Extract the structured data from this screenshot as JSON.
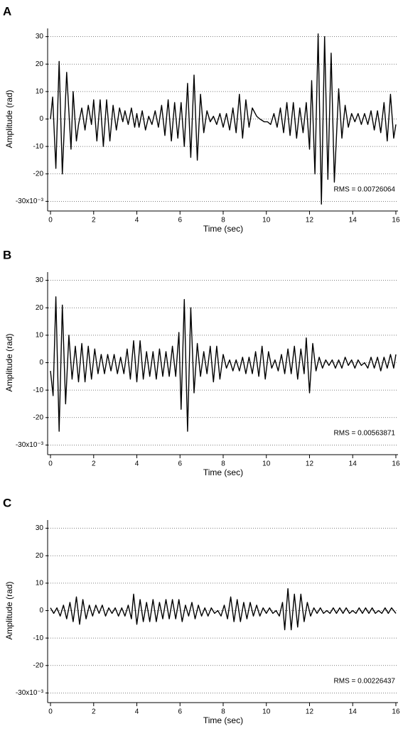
{
  "chart_data": [
    {
      "type": "line",
      "panel": "A",
      "xlabel": "Time (sec)",
      "ylabel": "Amplitude (rad)",
      "annotation": "RMS = 0.00726064",
      "color": "#000000",
      "grid": true,
      "xlim": [
        -0.1,
        16.1
      ],
      "ylim": [
        -33,
        33
      ],
      "xticks": [
        0,
        2,
        4,
        6,
        8,
        10,
        12,
        14,
        16
      ],
      "yticks": [
        30,
        20,
        10,
        0,
        -10,
        -20,
        {
          "value": -30,
          "label": "-30x10⁻³"
        }
      ],
      "x": [
        0,
        0.1,
        0.25,
        0.4,
        0.55,
        0.75,
        0.95,
        1.05,
        1.2,
        1.3,
        1.45,
        1.6,
        1.75,
        1.9,
        2.0,
        2.15,
        2.3,
        2.45,
        2.6,
        2.75,
        2.9,
        3.05,
        3.2,
        3.35,
        3.45,
        3.6,
        3.75,
        3.9,
        4.0,
        4.1,
        4.25,
        4.4,
        4.55,
        4.7,
        4.85,
        5.0,
        5.15,
        5.3,
        5.45,
        5.6,
        5.75,
        5.9,
        6.05,
        6.2,
        6.35,
        6.5,
        6.65,
        6.8,
        6.95,
        7.1,
        7.25,
        7.4,
        7.55,
        7.7,
        7.85,
        8.0,
        8.15,
        8.3,
        8.45,
        8.6,
        8.75,
        8.9,
        9.05,
        9.2,
        9.35,
        9.55,
        9.7,
        9.9,
        10.05,
        10.2,
        10.35,
        10.5,
        10.65,
        10.8,
        10.95,
        11.1,
        11.25,
        11.4,
        11.55,
        11.7,
        11.85,
        12.0,
        12.1,
        12.25,
        12.4,
        12.55,
        12.7,
        12.85,
        13.0,
        13.15,
        13.35,
        13.5,
        13.65,
        13.8,
        13.95,
        14.1,
        14.25,
        14.4,
        14.55,
        14.7,
        14.85,
        15.0,
        15.15,
        15.3,
        15.45,
        15.6,
        15.75,
        15.9,
        16.0
      ],
      "values": [
        0,
        8,
        -18,
        21,
        -20,
        17,
        -11,
        10,
        -8,
        -2,
        4,
        -4,
        5,
        -2,
        7,
        -8,
        7,
        -10,
        7,
        -8,
        5,
        -4,
        4,
        -1,
        3,
        -2,
        4,
        -3,
        2,
        -3,
        3,
        -4,
        1,
        -2,
        3,
        -3,
        5,
        -6,
        7,
        -8,
        6,
        -7,
        6,
        -10,
        13,
        -14,
        16,
        -15,
        9,
        -5,
        3,
        -1,
        1,
        -2,
        2,
        -3,
        2,
        -4,
        4,
        -5,
        9,
        -7,
        7,
        -3,
        4,
        1,
        0,
        -1,
        -1,
        -2,
        2,
        -3,
        4,
        -5,
        6,
        -6,
        6,
        -7,
        4,
        -5,
        6,
        -11,
        14,
        -20,
        31,
        -31,
        30,
        -22,
        24,
        -23,
        11,
        -7,
        5,
        -3,
        2,
        -1,
        2,
        -2,
        2,
        -2,
        3,
        -4,
        3,
        -5,
        6,
        -8,
        9,
        -7,
        -2
      ]
    },
    {
      "type": "line",
      "panel": "B",
      "xlabel": "Time (sec)",
      "ylabel": "Amplitude (rad)",
      "annotation": "RMS = 0.00563871",
      "color": "#000000",
      "grid": true,
      "xlim": [
        -0.1,
        16.1
      ],
      "ylim": [
        -33,
        33
      ],
      "xticks": [
        0,
        2,
        4,
        6,
        8,
        10,
        12,
        14,
        16
      ],
      "yticks": [
        30,
        20,
        10,
        0,
        -10,
        -20,
        {
          "value": -30,
          "label": "-30x10⁻³"
        }
      ],
      "x": [
        0,
        0.12,
        0.25,
        0.4,
        0.55,
        0.7,
        0.85,
        1.0,
        1.15,
        1.3,
        1.45,
        1.6,
        1.75,
        1.9,
        2.05,
        2.2,
        2.35,
        2.5,
        2.65,
        2.8,
        2.95,
        3.1,
        3.25,
        3.4,
        3.55,
        3.7,
        3.85,
        4.0,
        4.15,
        4.3,
        4.45,
        4.6,
        4.75,
        4.9,
        5.05,
        5.2,
        5.35,
        5.5,
        5.65,
        5.8,
        5.95,
        6.05,
        6.2,
        6.35,
        6.5,
        6.65,
        6.8,
        6.95,
        7.1,
        7.25,
        7.4,
        7.55,
        7.7,
        7.85,
        8.0,
        8.15,
        8.3,
        8.45,
        8.6,
        8.75,
        8.9,
        9.05,
        9.2,
        9.35,
        9.5,
        9.65,
        9.8,
        9.95,
        10.1,
        10.25,
        10.4,
        10.55,
        10.7,
        10.85,
        11.0,
        11.15,
        11.3,
        11.45,
        11.6,
        11.75,
        11.85,
        12.0,
        12.15,
        12.3,
        12.45,
        12.6,
        12.75,
        12.9,
        13.05,
        13.2,
        13.35,
        13.5,
        13.65,
        13.8,
        13.95,
        14.1,
        14.25,
        14.4,
        14.55,
        14.7,
        14.85,
        15.0,
        15.15,
        15.3,
        15.45,
        15.6,
        15.75,
        15.9,
        16.0
      ],
      "values": [
        -3,
        -12,
        24,
        -25,
        21,
        -15,
        10,
        -6,
        6,
        -7,
        7,
        -7,
        6,
        -6,
        5,
        -4,
        3,
        -4,
        3,
        -3,
        3,
        -4,
        2,
        -4,
        5,
        -6,
        8,
        -7,
        8,
        -6,
        4,
        -5,
        4,
        -6,
        5,
        -5,
        4,
        -5,
        6,
        -5,
        11,
        -17,
        23,
        -25,
        20,
        -11,
        7,
        -5,
        4,
        -4,
        6,
        -7,
        6,
        -6,
        3,
        -2,
        1,
        -3,
        1,
        -3,
        2,
        -4,
        2,
        -4,
        4,
        -5,
        6,
        -6,
        4,
        -2,
        1,
        -3,
        3,
        -4,
        5,
        -4,
        6,
        -6,
        5,
        -4,
        9,
        -11,
        7,
        -3,
        2,
        -2,
        1,
        -1,
        1,
        -2,
        1,
        -2,
        2,
        -1,
        1,
        -2,
        1,
        -1,
        0,
        -2,
        2,
        -2,
        2,
        -3,
        2,
        -2,
        3,
        -2,
        3
      ]
    },
    {
      "type": "line",
      "panel": "C",
      "xlabel": "Time (sec)",
      "ylabel": "Amplitude (rad)",
      "annotation": "RMS = 0.00226437",
      "color": "#000000",
      "grid": true,
      "xlim": [
        -0.1,
        16.1
      ],
      "ylim": [
        -33,
        33
      ],
      "xticks": [
        0,
        2,
        4,
        6,
        8,
        10,
        12,
        14,
        16
      ],
      "yticks": [
        30,
        20,
        10,
        0,
        -10,
        -20,
        {
          "value": -30,
          "label": "-30x10⁻³"
        }
      ],
      "x": [
        0,
        0.15,
        0.3,
        0.45,
        0.6,
        0.75,
        0.9,
        1.05,
        1.2,
        1.35,
        1.5,
        1.65,
        1.8,
        1.95,
        2.1,
        2.25,
        2.4,
        2.55,
        2.7,
        2.85,
        3.0,
        3.15,
        3.3,
        3.45,
        3.6,
        3.75,
        3.85,
        4.0,
        4.15,
        4.3,
        4.45,
        4.6,
        4.75,
        4.9,
        5.05,
        5.2,
        5.35,
        5.5,
        5.65,
        5.8,
        5.95,
        6.1,
        6.25,
        6.4,
        6.55,
        6.7,
        6.85,
        7.0,
        7.15,
        7.3,
        7.45,
        7.6,
        7.75,
        7.9,
        8.05,
        8.2,
        8.35,
        8.5,
        8.65,
        8.8,
        8.95,
        9.1,
        9.25,
        9.4,
        9.55,
        9.7,
        9.85,
        10.0,
        10.15,
        10.3,
        10.45,
        10.6,
        10.75,
        10.85,
        11.0,
        11.15,
        11.3,
        11.45,
        11.6,
        11.75,
        11.9,
        12.05,
        12.2,
        12.35,
        12.5,
        12.65,
        12.8,
        12.95,
        13.1,
        13.25,
        13.4,
        13.55,
        13.7,
        13.85,
        14.0,
        14.15,
        14.3,
        14.45,
        14.6,
        14.75,
        14.9,
        15.05,
        15.2,
        15.35,
        15.5,
        15.65,
        15.8,
        16.0
      ],
      "values": [
        1,
        -1,
        1,
        -2,
        2,
        -3,
        3,
        -4,
        5,
        -5,
        4,
        -3,
        2,
        -2,
        2,
        -1,
        2,
        -2,
        1,
        -1,
        1,
        -2,
        1,
        -2,
        2,
        -3,
        6,
        -5,
        4,
        -4,
        3,
        -4,
        4,
        -4,
        3,
        -3,
        4,
        -3,
        4,
        -3,
        4,
        -4,
        2,
        -2,
        3,
        -3,
        2,
        -2,
        1,
        -2,
        1,
        -1,
        0,
        -2,
        2,
        -3,
        5,
        -4,
        4,
        -4,
        3,
        -3,
        3,
        -2,
        2,
        -2,
        1,
        -1,
        1,
        -1,
        0,
        -2,
        3,
        -7,
        8,
        -7,
        6,
        -6,
        6,
        -4,
        3,
        -2,
        1,
        -1,
        1,
        -1,
        0,
        -1,
        1,
        -1,
        1,
        -1,
        1,
        -1,
        0,
        -1,
        1,
        -1,
        1,
        -1,
        1,
        -1,
        0,
        -1,
        1,
        -1,
        1,
        -1
      ]
    }
  ]
}
